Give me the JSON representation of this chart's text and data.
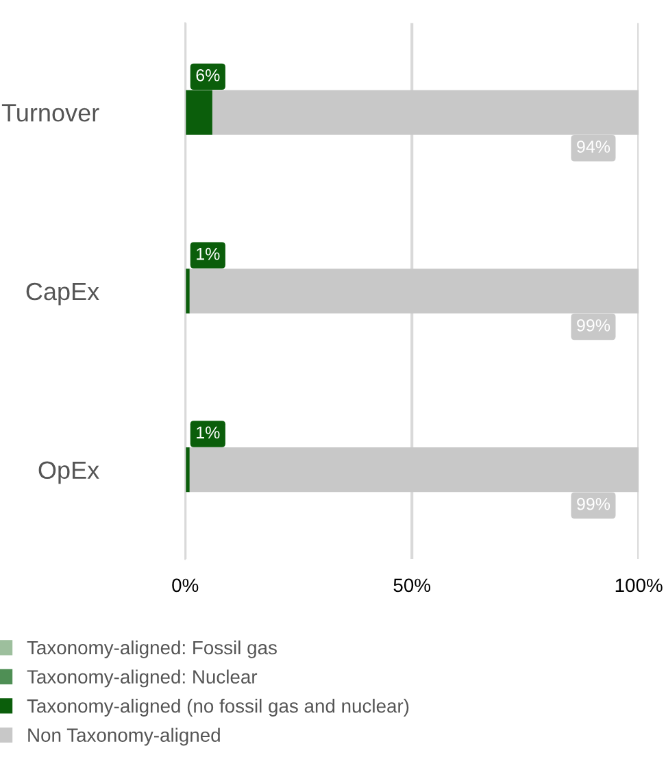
{
  "chart_data": {
    "type": "bar",
    "orientation": "horizontal",
    "stacked": true,
    "categories": [
      "Turnover",
      "CapEx",
      "OpEx"
    ],
    "series": [
      {
        "name": "Taxonomy-aligned: Fossil gas",
        "color": "#9dbf9d",
        "values": [
          0,
          0,
          0
        ]
      },
      {
        "name": "Taxonomy-aligned: Nuclear",
        "color": "#4f8f55",
        "values": [
          0,
          0,
          0
        ]
      },
      {
        "name": "Taxonomy-aligned (no fossil gas and nuclear)",
        "color": "#0b5e0b",
        "values": [
          6,
          1,
          1
        ],
        "value_labels": [
          "6%",
          "1%",
          "1%"
        ]
      },
      {
        "name": "Non Taxonomy-aligned",
        "color": "#c8c8c8",
        "values": [
          94,
          99,
          99
        ],
        "value_labels": [
          "94%",
          "99%",
          "99%"
        ]
      }
    ],
    "xlim": [
      0,
      100
    ],
    "xticks": [
      {
        "value": 0,
        "label": "0%"
      },
      {
        "value": 50,
        "label": "50%"
      },
      {
        "value": 100,
        "label": "100%"
      }
    ],
    "grid": "x",
    "legend": "bottom"
  }
}
